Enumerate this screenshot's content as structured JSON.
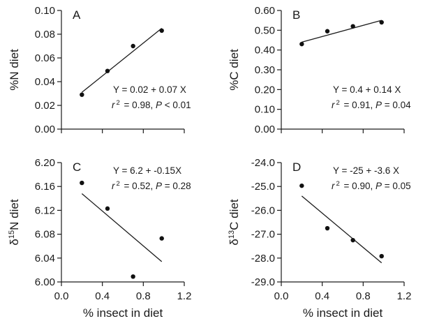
{
  "chart_data": [
    {
      "type": "scatter",
      "panel": "A",
      "ylabel": "%N diet",
      "ylabel_parts": [
        {
          "t": "%N diet"
        }
      ],
      "xlabel": "",
      "xlim": [
        0.0,
        1.2
      ],
      "ylim": [
        0.0,
        0.1
      ],
      "xticks": [
        "0.0",
        "0.4",
        "0.8",
        "1.2"
      ],
      "xticks_visible": false,
      "yticks": [
        "0.00",
        "0.02",
        "0.04",
        "0.06",
        "0.08",
        "0.10"
      ],
      "points": [
        {
          "x": 0.2,
          "y": 0.029
        },
        {
          "x": 0.45,
          "y": 0.049
        },
        {
          "x": 0.7,
          "y": 0.07
        },
        {
          "x": 0.98,
          "y": 0.083
        }
      ],
      "fit": {
        "x": [
          0.2,
          0.98
        ],
        "y": [
          0.031,
          0.085
        ]
      },
      "equation": "Y = 0.02 + 0.07 X",
      "stats": {
        "r_label": "r",
        "r_sup": "2",
        "r_value": " = 0.98, ",
        "p_label": "P",
        "p_value": " < 0.01"
      },
      "annotation_pos": "bottom-right"
    },
    {
      "type": "scatter",
      "panel": "B",
      "ylabel": "%C diet",
      "ylabel_parts": [
        {
          "t": "%C diet"
        }
      ],
      "xlabel": "",
      "xlim": [
        0.0,
        1.2
      ],
      "ylim": [
        0.0,
        0.6
      ],
      "xticks": [
        "0.0",
        "0.4",
        "0.8",
        "1.2"
      ],
      "xticks_visible": false,
      "yticks": [
        "0.00",
        "0.10",
        "0.20",
        "0.30",
        "0.40",
        "0.50",
        "0.60"
      ],
      "points": [
        {
          "x": 0.2,
          "y": 0.43
        },
        {
          "x": 0.45,
          "y": 0.495
        },
        {
          "x": 0.7,
          "y": 0.52
        },
        {
          "x": 0.98,
          "y": 0.54
        }
      ],
      "fit": {
        "x": [
          0.2,
          0.98
        ],
        "y": [
          0.44,
          0.55
        ]
      },
      "equation": "Y = 0.4 + 0.14 X",
      "stats": {
        "r_label": "r",
        "r_sup": "2",
        "r_value": " = 0.91, ",
        "p_label": "P",
        "p_value": " = 0.04"
      },
      "annotation_pos": "bottom-right"
    },
    {
      "type": "scatter",
      "panel": "C",
      "ylabel": "δ15N diet",
      "ylabel_parts": [
        {
          "t": "δ"
        },
        {
          "t": "15",
          "sup": true
        },
        {
          "t": "N diet"
        }
      ],
      "xlabel": "% insect in diet",
      "xlim": [
        0.0,
        1.2
      ],
      "ylim": [
        6.0,
        6.2
      ],
      "xticks": [
        "0.0",
        "0.4",
        "0.8",
        "1.2"
      ],
      "xticks_visible": true,
      "yticks": [
        "6.00",
        "6.04",
        "6.08",
        "6.12",
        "6.16",
        "6.20"
      ],
      "points": [
        {
          "x": 0.2,
          "y": 6.166
        },
        {
          "x": 0.45,
          "y": 6.123
        },
        {
          "x": 0.7,
          "y": 6.009
        },
        {
          "x": 0.98,
          "y": 6.073
        }
      ],
      "fit": {
        "x": [
          0.2,
          0.98
        ],
        "y": [
          6.148,
          6.034
        ]
      },
      "equation": "Y = 6.2 + -0.15X",
      "stats": {
        "r_label": "r",
        "r_sup": "2",
        "r_value": " = 0.52, ",
        "p_label": "P",
        "p_value": " = 0.28"
      },
      "annotation_pos": "top-right"
    },
    {
      "type": "scatter",
      "panel": "D",
      "ylabel": "δ13C diet",
      "ylabel_parts": [
        {
          "t": "δ"
        },
        {
          "t": "13",
          "sup": true
        },
        {
          "t": "C diet"
        }
      ],
      "xlabel": "% insect in diet",
      "xlim": [
        0.0,
        1.2
      ],
      "ylim": [
        -29.0,
        -24.0
      ],
      "xticks": [
        "0.0",
        "0.4",
        "0.8",
        "1.2"
      ],
      "xticks_visible": true,
      "yticks": [
        "-29.0",
        "-28.0",
        "-27.0",
        "-26.0",
        "-25.0",
        "-24.0"
      ],
      "points": [
        {
          "x": 0.2,
          "y": -24.97
        },
        {
          "x": 0.45,
          "y": -26.75
        },
        {
          "x": 0.7,
          "y": -27.25
        },
        {
          "x": 0.98,
          "y": -27.92
        }
      ],
      "fit": {
        "x": [
          0.2,
          0.98
        ],
        "y": [
          -25.4,
          -28.2
        ]
      },
      "equation": "Y = -25 + -3.6 X",
      "stats": {
        "r_label": "r",
        "r_sup": "2",
        "r_value": " = 0.90, ",
        "p_label": "P",
        "p_value": " = 0.05"
      },
      "annotation_pos": "top-right"
    }
  ]
}
